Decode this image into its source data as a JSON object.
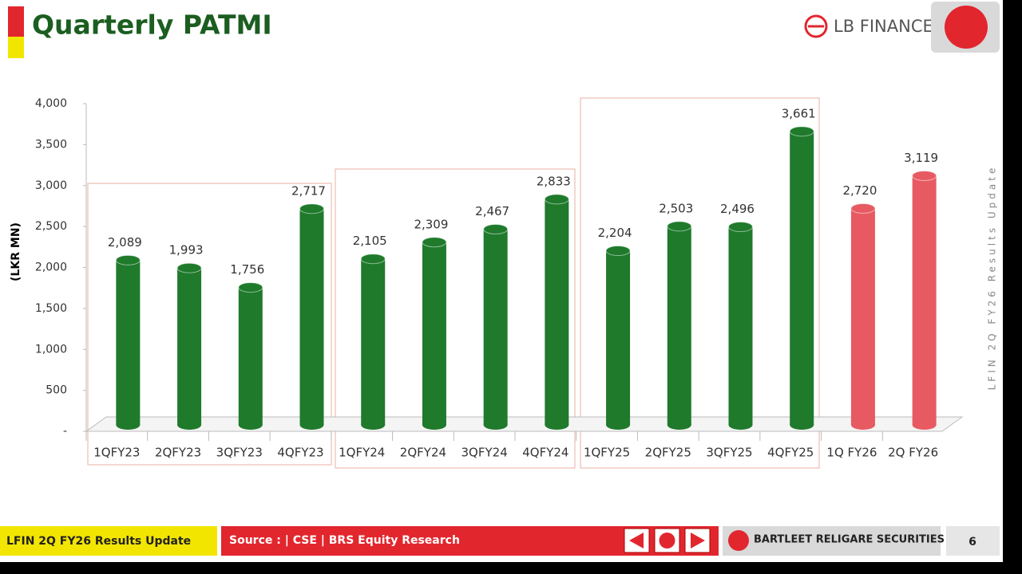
{
  "chart_data": {
    "type": "bar",
    "title": "Quarterly PATMI",
    "y_label": "(LKR MN)",
    "categories": [
      "1QFY23",
      "2QFY23",
      "3QFY23",
      "4QFY23",
      "1QFY24",
      "2QFY24",
      "3QFY24",
      "4QFY24",
      "1QFY25",
      "2QFY25",
      "3QFY25",
      "4QFY25",
      "1Q FY26",
      "2Q FY26"
    ],
    "values": [
      2089,
      1993,
      1756,
      2717,
      2105,
      2309,
      2467,
      2833,
      2204,
      2503,
      2496,
      3661,
      2720,
      3119
    ],
    "value_labels": [
      "2,089",
      "1,993",
      "1,756",
      "2,717",
      "2,105",
      "2,309",
      "2,467",
      "2,833",
      "2,204",
      "2,503",
      "2,496",
      "3,661",
      "2,720",
      "3,119"
    ],
    "colors": [
      "#1f7a2c",
      "#1f7a2c",
      "#1f7a2c",
      "#1f7a2c",
      "#1f7a2c",
      "#1f7a2c",
      "#1f7a2c",
      "#1f7a2c",
      "#1f7a2c",
      "#1f7a2c",
      "#1f7a2c",
      "#1f7a2c",
      "#e85a62",
      "#e85a62"
    ],
    "ylim": [
      0,
      4000
    ],
    "yticks": [
      {
        "value": 0,
        "label": "-"
      },
      500,
      {
        "value": 1000,
        "label": "1,000"
      },
      {
        "value": 1500,
        "label": "1,500"
      },
      {
        "value": 2000,
        "label": "2,000"
      },
      {
        "value": 2500,
        "label": "2,500"
      },
      {
        "value": 3000,
        "label": "3,000"
      },
      {
        "value": 3500,
        "label": "3,500"
      },
      {
        "value": 4000,
        "label": "4,000"
      }
    ],
    "grid": false
  },
  "logo": "LB FINANCE",
  "side_note": "LFIN 2Q FY26 Results Update",
  "footer": {
    "left": "LFIN 2Q FY26 Results Update",
    "source": "Source : | CSE | BRS Equity Research",
    "brand": "BARTLEET RELIGARE SECURITIES",
    "page": "6"
  }
}
